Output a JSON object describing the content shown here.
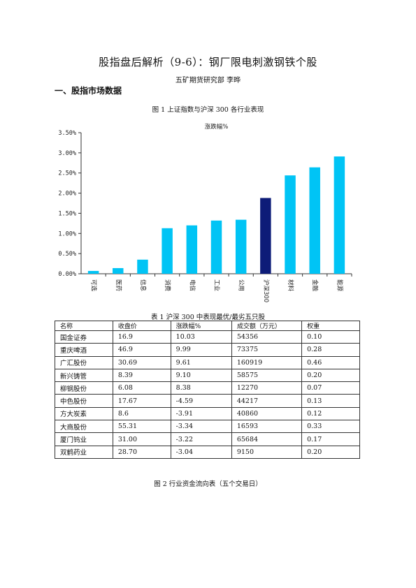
{
  "doc": {
    "title": "股指盘后解析（9-6）：钢厂限电刺激钢铁个股",
    "author": "五矿期货研究部    李晔",
    "section1": "一、股指市场数据",
    "fig1_caption": "图 1    上证指数与沪深 300 各行业表现",
    "table_caption": "表 1    沪深 300 中表现最优/最劣五只股",
    "fig2_caption": "图 2    行业资金流向表（五个交易日）"
  },
  "chart_data": {
    "type": "bar",
    "title": "涨跌幅%",
    "categories": [
      "可选",
      "医药",
      "信息",
      "消费",
      "电信",
      "工业",
      "公用",
      "沪深300",
      "材料",
      "金融",
      "能源"
    ],
    "values": [
      0.07,
      0.14,
      0.35,
      1.13,
      1.2,
      1.32,
      1.34,
      1.88,
      2.44,
      2.64,
      2.91
    ],
    "ylim": [
      0,
      3.5
    ],
    "yticks": [
      "0.00%",
      "0.50%",
      "1.00%",
      "1.50%",
      "2.00%",
      "2.50%",
      "3.00%",
      "3.50%"
    ],
    "colors": {
      "bar": "#00c4f5",
      "highlight": "#0d1c78",
      "axis": "#333333"
    },
    "highlight_category": "沪深300",
    "grid": false
  },
  "table": {
    "headers": [
      "名称",
      "收盘价",
      "涨跌幅%",
      "成交额（万元）",
      "权重"
    ],
    "rows": [
      [
        "国金证券",
        "16.9",
        "10.03",
        "54356",
        "0.10"
      ],
      [
        "重庆啤酒",
        "46.9",
        "9.99",
        "73375",
        "0.28"
      ],
      [
        "广汇股份",
        "30.69",
        "9.61",
        "160919",
        "0.46"
      ],
      [
        "新兴铸管",
        "8.39",
        "9.10",
        "58575",
        "0.20"
      ],
      [
        "柳钢股份",
        "6.08",
        "8.38",
        "12270",
        "0.07"
      ],
      [
        "中色股份",
        "17.67",
        "-4.59",
        "44217",
        "0.13"
      ],
      [
        "方大炭素",
        "8.6",
        "-3.91",
        "40860",
        "0.12"
      ],
      [
        "大商股份",
        "55.31",
        "-3.34",
        "16593",
        "0.33"
      ],
      [
        "厦门钨业",
        "31.00",
        "-3.22",
        "65684",
        "0.17"
      ],
      [
        "双鹤药业",
        "28.70",
        "-3.04",
        "9150",
        "0.20"
      ]
    ]
  }
}
